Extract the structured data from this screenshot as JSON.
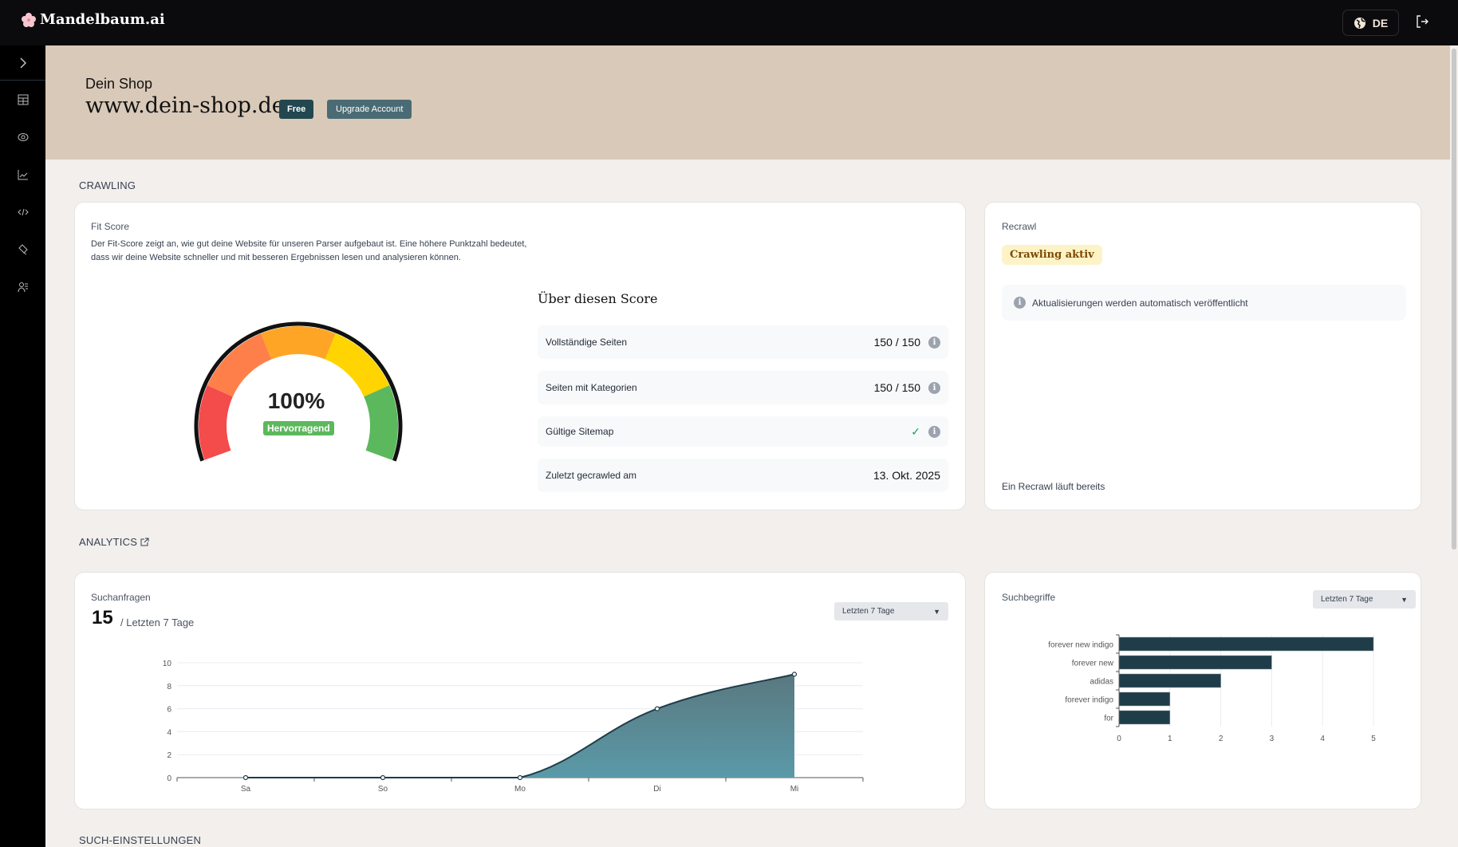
{
  "app": {
    "name": "Mandelbaum.ai",
    "language": "DE"
  },
  "header": {
    "shop_label": "Dein Shop",
    "url": "www.dein-shop.de",
    "plan_badge": "Free",
    "upgrade_label": "Upgrade Account"
  },
  "sidebar": {
    "items": [
      {
        "icon": "table-icon"
      },
      {
        "icon": "eye-icon"
      },
      {
        "icon": "chart-icon"
      },
      {
        "icon": "code-icon"
      },
      {
        "icon": "brush-icon"
      },
      {
        "icon": "users-icon"
      }
    ]
  },
  "crawling": {
    "section_title": "CRAWLING",
    "fit": {
      "label": "Fit Score",
      "description": "Der Fit-Score zeigt an, wie gut deine Website für unseren Parser aufgebaut ist. Eine höhere Punktzahl bedeutet, dass wir deine Website schneller und mit besseren Ergebnissen lesen und analysieren können.",
      "score": "100%",
      "score_value": 100,
      "rating": "Hervorragend"
    },
    "about_title": "Über diesen Score",
    "rows": [
      {
        "label": "Vollständige Seiten",
        "value": "150 / 150"
      },
      {
        "label": "Seiten mit Kategorien",
        "value": "150 / 150"
      },
      {
        "label": "Gültige Sitemap",
        "value": "✓"
      },
      {
        "label": "Zuletzt gecrawled am",
        "value": "13. Okt. 2025"
      }
    ],
    "recrawl": {
      "label": "Recrawl",
      "status": "Crawling aktiv",
      "notice": "Aktualisierungen werden automatisch veröffentlicht",
      "footer": "Ein Recrawl läuft bereits"
    }
  },
  "analytics": {
    "section_title": "ANALYTICS",
    "queries": {
      "label": "Suchanfragen",
      "total": "15",
      "period": "/ Letzten 7 Tage",
      "dropdown": "Letzten 7 Tage"
    },
    "terms": {
      "label": "Suchbegriffe",
      "dropdown": "Letzten 7 Tage"
    }
  },
  "search_settings": {
    "section_title": "SUCH-EINSTELLUNGEN"
  },
  "chart_data": [
    {
      "type": "area",
      "categories": [
        "Sa",
        "So",
        "Mo",
        "Di",
        "Mi"
      ],
      "values": [
        0,
        0,
        0,
        6,
        9
      ],
      "ylim": [
        0,
        10
      ],
      "yticks": [
        0,
        2,
        4,
        6,
        8,
        10
      ],
      "grid": true,
      "color": "#5a9aa8"
    },
    {
      "type": "bar",
      "orientation": "horizontal",
      "categories": [
        "forever new indigo",
        "forever new",
        "adidas",
        "forever indigo",
        "for"
      ],
      "values": [
        5,
        3,
        2,
        1,
        1
      ],
      "xlim": [
        0,
        5
      ],
      "xticks": [
        0,
        1,
        2,
        3,
        4,
        5
      ],
      "grid": true,
      "color": "#1e3d48"
    }
  ]
}
